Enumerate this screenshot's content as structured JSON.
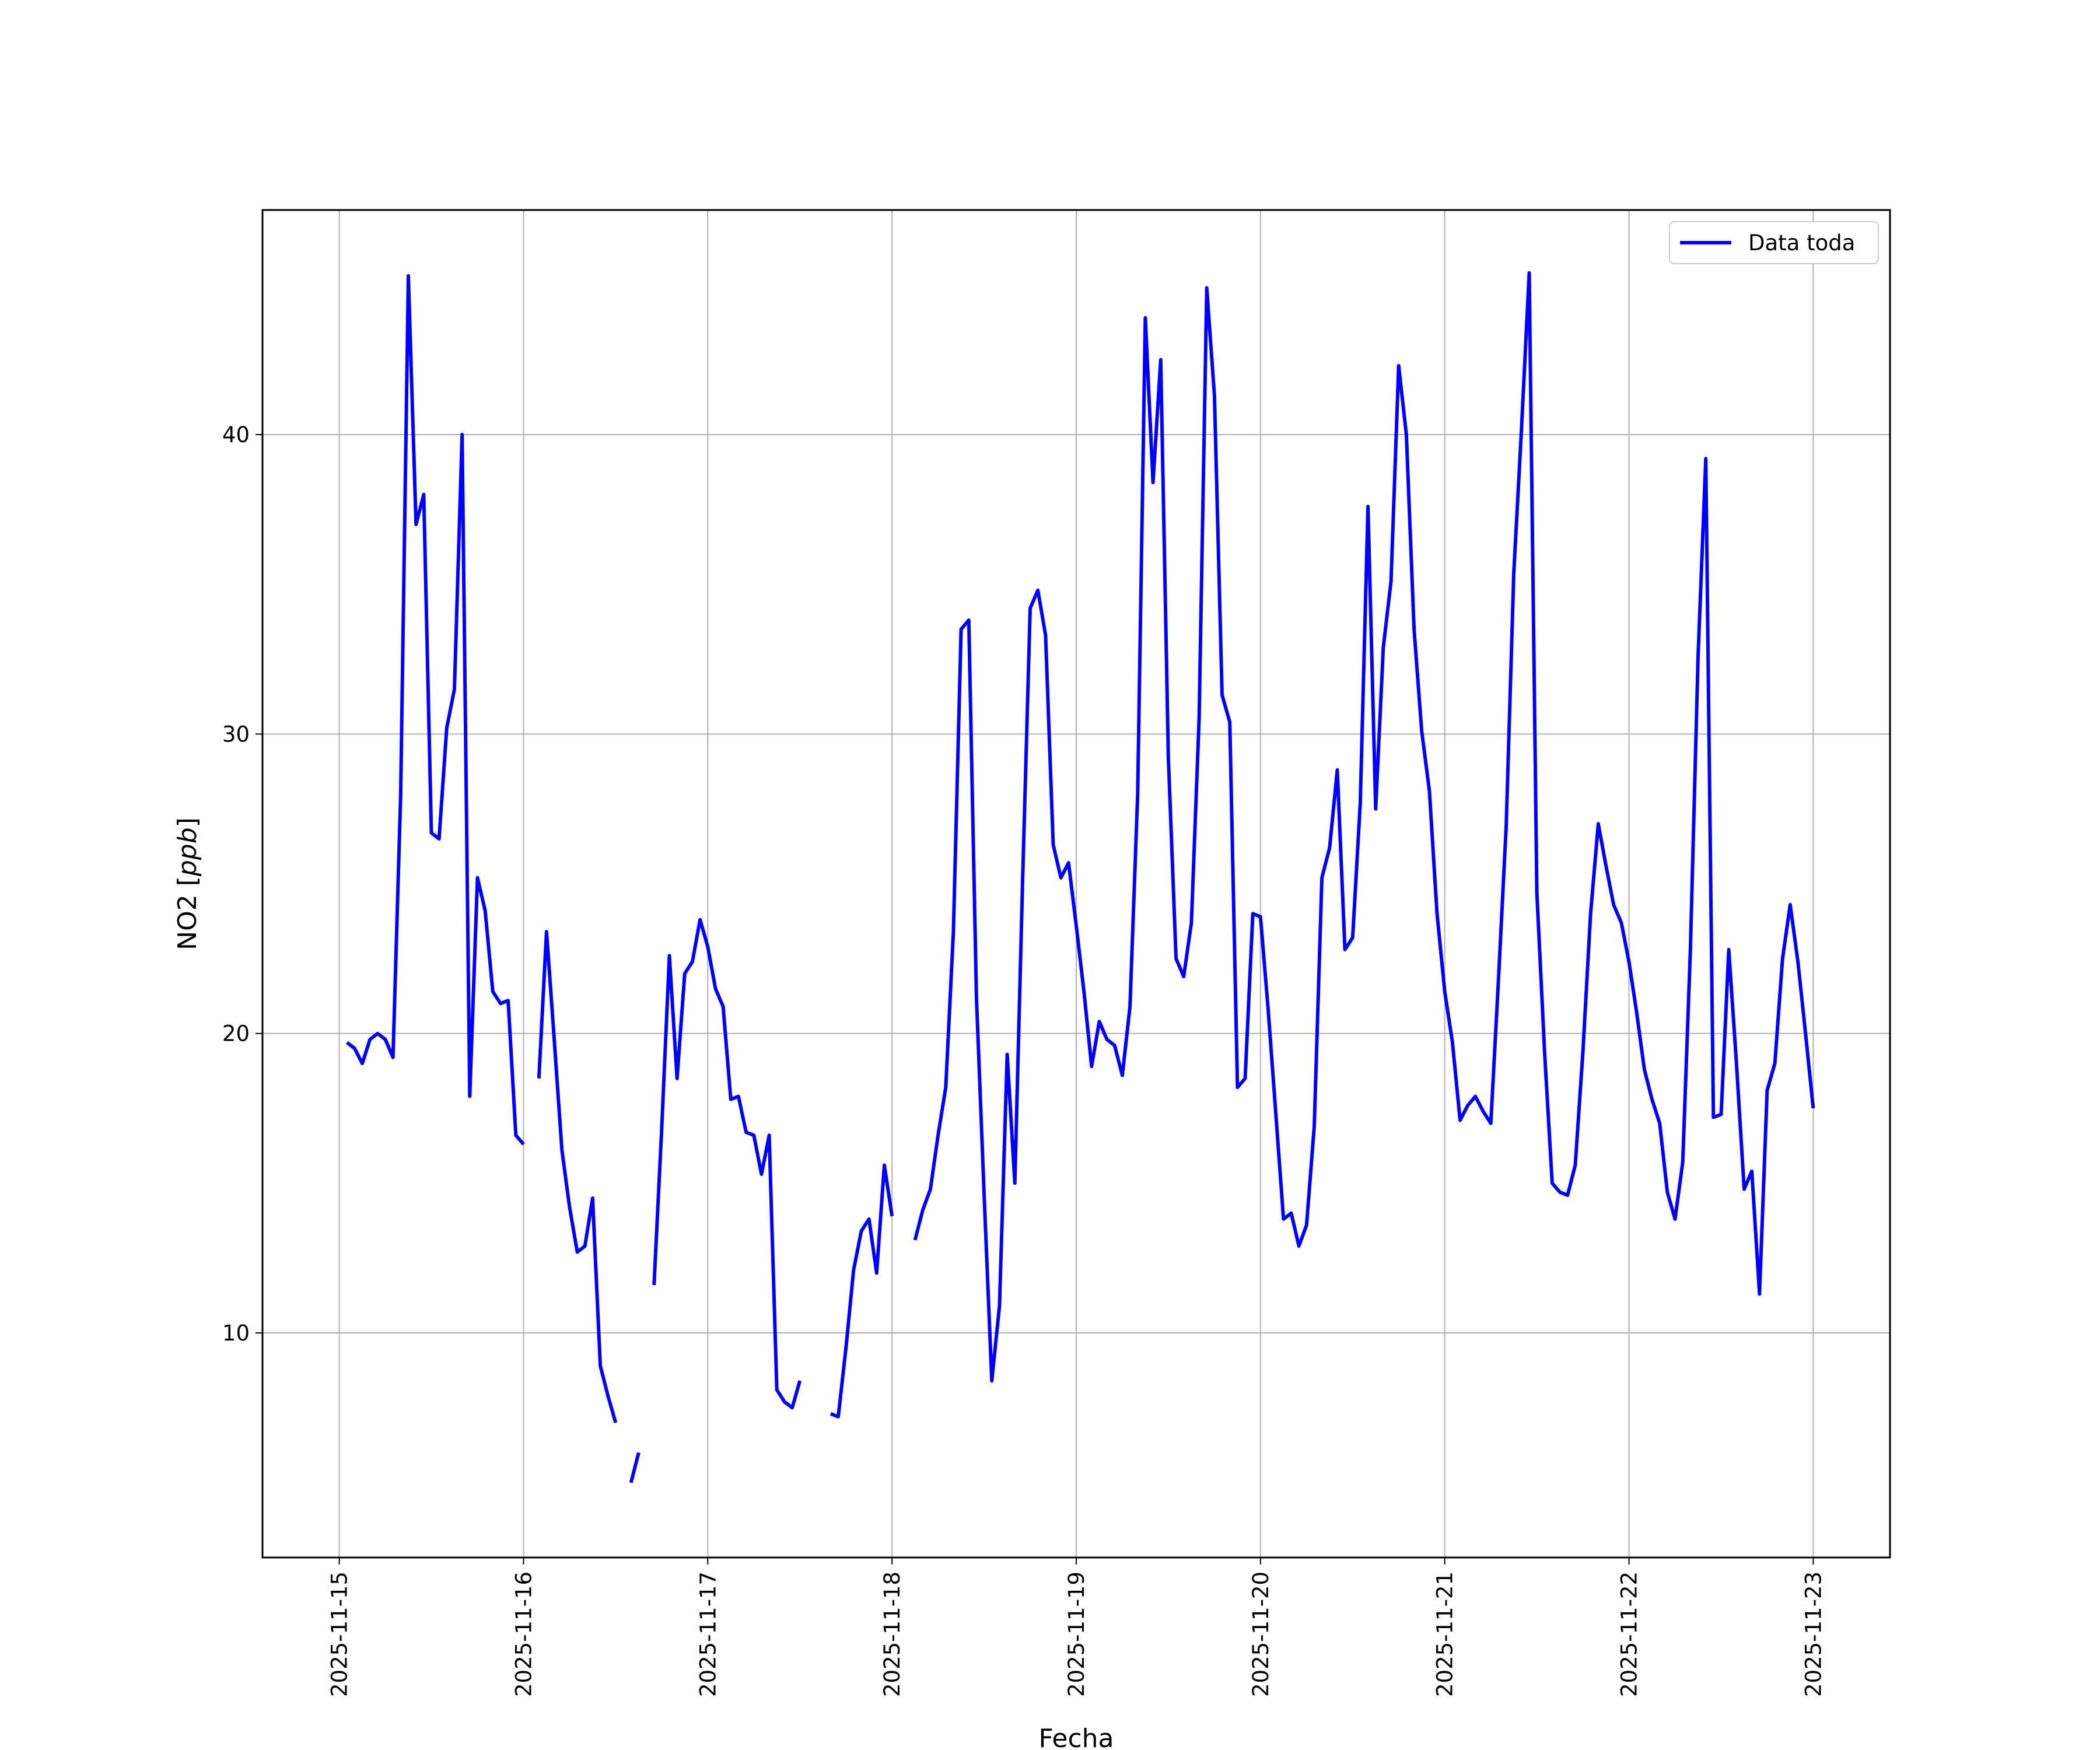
{
  "chart_data": {
    "type": "line",
    "xlabel": "Fecha",
    "ylabel": "NO2 [",
    "ylabel_unit": "ppb",
    "ylabel_close": "]",
    "xlim": [
      "2025-11-14T14:00",
      "2025-11-23T10:00"
    ],
    "ylim": [
      2.5,
      47.5
    ],
    "x_ticks": [
      "2025-11-15",
      "2025-11-16",
      "2025-11-17",
      "2025-11-18",
      "2025-11-19",
      "2025-11-20",
      "2025-11-21",
      "2025-11-22",
      "2025-11-23"
    ],
    "y_ticks": [
      10,
      20,
      30,
      40
    ],
    "grid": true,
    "legend": {
      "position": "top-right",
      "entries": [
        "Data toda"
      ]
    },
    "series": [
      {
        "name": "Data toda",
        "color": "#0000ff",
        "segments": [
          [
            [
              "2025-11-15T01:00",
              19.7
            ],
            [
              "2025-11-15T02:00",
              19.5
            ],
            [
              "2025-11-15T03:00",
              19.0
            ],
            [
              "2025-11-15T04:00",
              19.8
            ],
            [
              "2025-11-15T05:00",
              20.0
            ],
            [
              "2025-11-15T06:00",
              19.8
            ],
            [
              "2025-11-15T07:00",
              19.2
            ],
            [
              "2025-11-15T08:00",
              28.0
            ],
            [
              "2025-11-15T09:00",
              45.3
            ],
            [
              "2025-11-15T10:00",
              37.0
            ],
            [
              "2025-11-15T11:00",
              38.0
            ],
            [
              "2025-11-15T12:00",
              26.7
            ],
            [
              "2025-11-15T13:00",
              26.5
            ],
            [
              "2025-11-15T14:00",
              30.2
            ],
            [
              "2025-11-15T15:00",
              31.5
            ],
            [
              "2025-11-15T16:00",
              40.0
            ],
            [
              "2025-11-15T17:00",
              17.9
            ],
            [
              "2025-11-15T18:00",
              25.2
            ],
            [
              "2025-11-15T19:00",
              24.1
            ],
            [
              "2025-11-15T20:00",
              21.4
            ],
            [
              "2025-11-15T21:00",
              21.0
            ],
            [
              "2025-11-15T22:00",
              21.1
            ],
            [
              "2025-11-15T23:00",
              16.6
            ],
            [
              "2025-11-16T00:00",
              16.3
            ]
          ],
          [
            [
              "2025-11-16T02:00",
              18.5
            ],
            [
              "2025-11-16T03:00",
              23.4
            ],
            [
              "2025-11-16T04:00",
              19.8
            ],
            [
              "2025-11-16T05:00",
              16.1
            ],
            [
              "2025-11-16T06:00",
              14.2
            ],
            [
              "2025-11-16T07:00",
              12.7
            ],
            [
              "2025-11-16T08:00",
              12.9
            ],
            [
              "2025-11-16T09:00",
              14.5
            ],
            [
              "2025-11-16T10:00",
              8.9
            ],
            [
              "2025-11-16T11:00",
              7.9
            ],
            [
              "2025-11-16T12:00",
              7.0
            ]
          ],
          [
            [
              "2025-11-16T14:00",
              5.0
            ],
            [
              "2025-11-16T15:00",
              6.0
            ]
          ],
          [
            [
              "2025-11-16T17:00",
              11.6
            ],
            [
              "2025-11-16T18:00",
              16.8
            ],
            [
              "2025-11-16T19:00",
              22.6
            ],
            [
              "2025-11-16T20:00",
              18.5
            ],
            [
              "2025-11-16T21:00",
              22.0
            ],
            [
              "2025-11-16T22:00",
              22.4
            ],
            [
              "2025-11-16T23:00",
              23.8
            ],
            [
              "2025-11-17T00:00",
              22.9
            ],
            [
              "2025-11-17T01:00",
              21.5
            ],
            [
              "2025-11-17T02:00",
              20.9
            ],
            [
              "2025-11-17T03:00",
              17.8
            ],
            [
              "2025-11-17T04:00",
              17.9
            ],
            [
              "2025-11-17T05:00",
              16.7
            ],
            [
              "2025-11-17T06:00",
              16.6
            ],
            [
              "2025-11-17T07:00",
              15.3
            ],
            [
              "2025-11-17T08:00",
              16.6
            ],
            [
              "2025-11-17T09:00",
              8.1
            ],
            [
              "2025-11-17T10:00",
              7.7
            ],
            [
              "2025-11-17T11:00",
              7.5
            ],
            [
              "2025-11-17T12:00",
              8.4
            ]
          ],
          [
            [
              "2025-11-17T16:00",
              7.3
            ],
            [
              "2025-11-17T17:00",
              7.2
            ],
            [
              "2025-11-17T18:00",
              9.5
            ],
            [
              "2025-11-17T19:00",
              12.1
            ],
            [
              "2025-11-17T20:00",
              13.4
            ],
            [
              "2025-11-17T21:00",
              13.8
            ],
            [
              "2025-11-17T22:00",
              12.0
            ],
            [
              "2025-11-17T23:00",
              15.6
            ],
            [
              "2025-11-18T00:00",
              13.9
            ]
          ],
          [
            [
              "2025-11-18T03:00",
              13.1
            ],
            [
              "2025-11-18T04:00",
              14.1
            ],
            [
              "2025-11-18T05:00",
              14.8
            ],
            [
              "2025-11-18T06:00",
              16.6
            ],
            [
              "2025-11-18T07:00",
              18.2
            ],
            [
              "2025-11-18T08:00",
              23.4
            ],
            [
              "2025-11-18T09:00",
              33.5
            ],
            [
              "2025-11-18T10:00",
              33.8
            ],
            [
              "2025-11-18T11:00",
              21.2
            ],
            [
              "2025-11-18T12:00",
              14.6
            ],
            [
              "2025-11-18T13:00",
              8.4
            ],
            [
              "2025-11-18T14:00",
              10.9
            ],
            [
              "2025-11-18T15:00",
              19.3
            ],
            [
              "2025-11-18T16:00",
              15.0
            ],
            [
              "2025-11-18T17:00",
              25.0
            ],
            [
              "2025-11-18T18:00",
              34.2
            ],
            [
              "2025-11-18T19:00",
              34.8
            ],
            [
              "2025-11-18T20:00",
              33.3
            ],
            [
              "2025-11-18T21:00",
              26.3
            ],
            [
              "2025-11-18T22:00",
              25.2
            ],
            [
              "2025-11-18T23:00",
              25.7
            ],
            [
              "2025-11-19T00:00",
              23.6
            ],
            [
              "2025-11-19T01:00",
              21.4
            ],
            [
              "2025-11-19T02:00",
              18.9
            ],
            [
              "2025-11-19T03:00",
              20.4
            ],
            [
              "2025-11-19T04:00",
              19.8
            ],
            [
              "2025-11-19T05:00",
              19.6
            ],
            [
              "2025-11-19T06:00",
              18.6
            ],
            [
              "2025-11-19T07:00",
              20.9
            ],
            [
              "2025-11-19T08:00",
              28.0
            ],
            [
              "2025-11-19T09:00",
              43.9
            ],
            [
              "2025-11-19T10:00",
              38.4
            ],
            [
              "2025-11-19T11:00",
              42.5
            ],
            [
              "2025-11-19T12:00",
              29.2
            ],
            [
              "2025-11-19T13:00",
              22.5
            ],
            [
              "2025-11-19T14:00",
              21.9
            ],
            [
              "2025-11-19T15:00",
              23.7
            ],
            [
              "2025-11-19T16:00",
              30.5
            ],
            [
              "2025-11-19T17:00",
              44.9
            ],
            [
              "2025-11-19T18:00",
              41.3
            ],
            [
              "2025-11-19T19:00",
              31.3
            ],
            [
              "2025-11-19T20:00",
              30.4
            ],
            [
              "2025-11-19T21:00",
              18.2
            ],
            [
              "2025-11-19T22:00",
              18.5
            ],
            [
              "2025-11-19T23:00",
              24.0
            ],
            [
              "2025-11-20T00:00",
              23.9
            ],
            [
              "2025-11-20T01:00",
              20.8
            ],
            [
              "2025-11-20T02:00",
              17.3
            ],
            [
              "2025-11-20T03:00",
              13.8
            ],
            [
              "2025-11-20T04:00",
              14.0
            ],
            [
              "2025-11-20T05:00",
              12.9
            ],
            [
              "2025-11-20T06:00",
              13.6
            ],
            [
              "2025-11-20T07:00",
              16.9
            ],
            [
              "2025-11-20T08:00",
              25.2
            ],
            [
              "2025-11-20T09:00",
              26.2
            ],
            [
              "2025-11-20T10:00",
              28.8
            ],
            [
              "2025-11-20T11:00",
              22.8
            ],
            [
              "2025-11-20T12:00",
              23.2
            ],
            [
              "2025-11-20T13:00",
              27.7
            ],
            [
              "2025-11-20T14:00",
              37.6
            ],
            [
              "2025-11-20T15:00",
              27.5
            ],
            [
              "2025-11-20T16:00",
              32.9
            ],
            [
              "2025-11-20T17:00",
              35.1
            ],
            [
              "2025-11-20T18:00",
              42.3
            ],
            [
              "2025-11-20T19:00",
              40.0
            ],
            [
              "2025-11-20T20:00",
              33.5
            ],
            [
              "2025-11-20T21:00",
              30.1
            ],
            [
              "2025-11-20T22:00",
              28.1
            ],
            [
              "2025-11-20T23:00",
              24.0
            ],
            [
              "2025-11-21T00:00",
              21.4
            ],
            [
              "2025-11-21T01:00",
              19.7
            ],
            [
              "2025-11-21T02:00",
              17.1
            ],
            [
              "2025-11-21T03:00",
              17.6
            ],
            [
              "2025-11-21T04:00",
              17.9
            ],
            [
              "2025-11-21T05:00",
              17.4
            ],
            [
              "2025-11-21T06:00",
              17.0
            ],
            [
              "2025-11-21T07:00",
              21.8
            ],
            [
              "2025-11-21T08:00",
              26.9
            ],
            [
              "2025-11-21T09:00",
              35.4
            ],
            [
              "2025-11-21T10:00",
              40.2
            ],
            [
              "2025-11-21T11:00",
              45.4
            ],
            [
              "2025-11-21T12:00",
              24.7
            ],
            [
              "2025-11-21T13:00",
              19.4
            ],
            [
              "2025-11-21T14:00",
              15.0
            ],
            [
              "2025-11-21T15:00",
              14.7
            ],
            [
              "2025-11-21T16:00",
              14.6
            ],
            [
              "2025-11-21T17:00",
              15.6
            ],
            [
              "2025-11-21T18:00",
              19.4
            ],
            [
              "2025-11-21T19:00",
              24.0
            ],
            [
              "2025-11-21T20:00",
              27.0
            ],
            [
              "2025-11-21T21:00",
              25.6
            ],
            [
              "2025-11-21T22:00",
              24.3
            ],
            [
              "2025-11-21T23:00",
              23.7
            ],
            [
              "2025-11-22T00:00",
              22.4
            ],
            [
              "2025-11-22T01:00",
              20.7
            ],
            [
              "2025-11-22T02:00",
              18.8
            ],
            [
              "2025-11-22T03:00",
              17.8
            ],
            [
              "2025-11-22T04:00",
              17.0
            ],
            [
              "2025-11-22T05:00",
              14.7
            ],
            [
              "2025-11-22T06:00",
              13.8
            ],
            [
              "2025-11-22T07:00",
              15.7
            ],
            [
              "2025-11-22T08:00",
              22.8
            ],
            [
              "2025-11-22T09:00",
              32.6
            ],
            [
              "2025-11-22T10:00",
              39.2
            ],
            [
              "2025-11-22T11:00",
              17.2
            ],
            [
              "2025-11-22T12:00",
              17.3
            ],
            [
              "2025-11-22T13:00",
              22.8
            ],
            [
              "2025-11-22T14:00",
              19.0
            ],
            [
              "2025-11-22T15:00",
              14.8
            ],
            [
              "2025-11-22T16:00",
              15.4
            ],
            [
              "2025-11-22T17:00",
              11.3
            ],
            [
              "2025-11-22T18:00",
              18.1
            ],
            [
              "2025-11-22T19:00",
              19.0
            ],
            [
              "2025-11-22T20:00",
              22.5
            ],
            [
              "2025-11-22T21:00",
              24.3
            ],
            [
              "2025-11-22T22:00",
              22.4
            ],
            [
              "2025-11-22T23:00",
              20.0
            ],
            [
              "2025-11-23T00:00",
              17.5
            ]
          ]
        ]
      }
    ]
  }
}
